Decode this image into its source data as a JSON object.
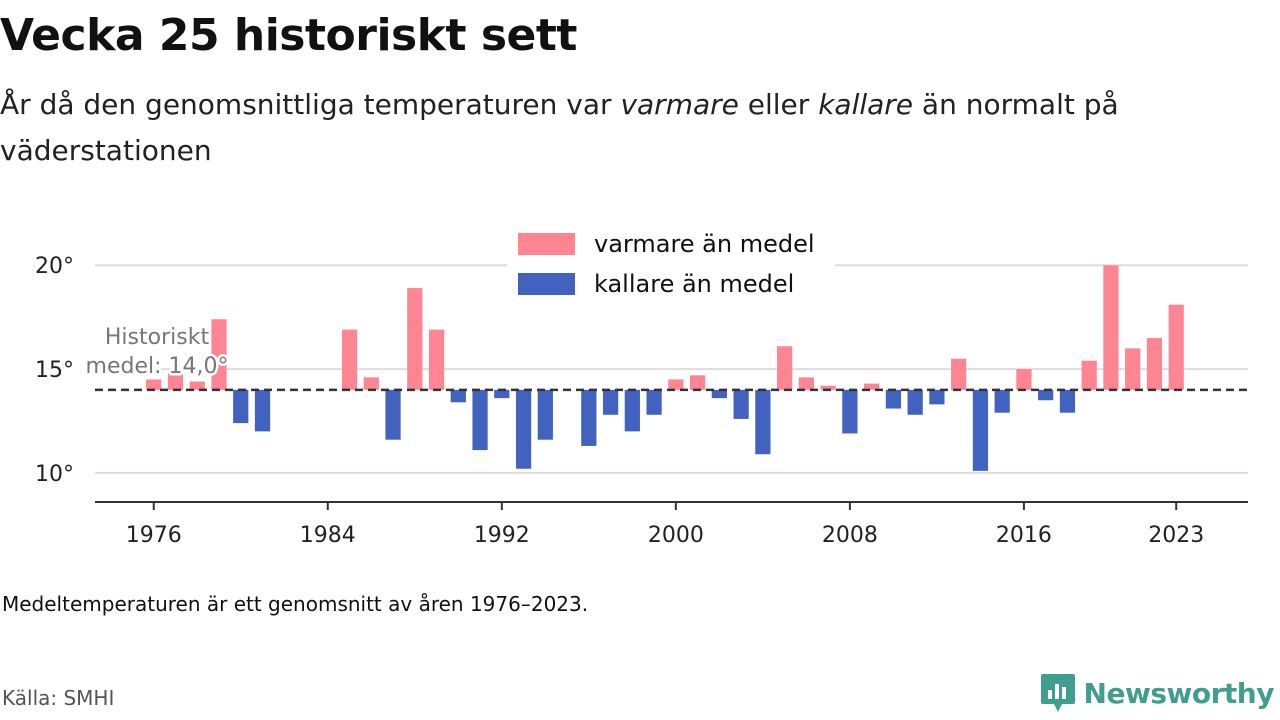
{
  "header": {
    "title": "Vecka 25 historiskt sett",
    "subtitle_parts": [
      "År då den genomsnittliga temperaturen var ",
      "varmare",
      " eller ",
      "kallare",
      " än normalt på väderstationen"
    ]
  },
  "footer": {
    "note": "Medeltemperaturen är ett genomsnitt av åren 1976–2023.",
    "source": "Källa: SMHI",
    "brand": "Newsworthy"
  },
  "colors": {
    "warm": "#ff8593",
    "cold": "#4262c0",
    "brand": "#3f9e8f",
    "grid": "#dddddd",
    "reference_line": "#333333"
  },
  "chart_data": {
    "type": "bar",
    "baseline": 14.0,
    "reference_label": [
      "Historiskt",
      "medel: 14,0°"
    ],
    "y_ticks": [
      10,
      15,
      20
    ],
    "y_tick_format": "{v}°",
    "ylim": [
      8.6,
      21.6
    ],
    "x_ticks": [
      1976,
      1984,
      1992,
      2000,
      2008,
      2016,
      2023
    ],
    "xlim": [
      1973.3,
      2026.3
    ],
    "grid": "horizontal",
    "legend": {
      "placement": "top-center",
      "entries": [
        {
          "label": "varmare än medel",
          "color_key": "warm"
        },
        {
          "label": "kallare än medel",
          "color_key": "cold"
        }
      ]
    },
    "x": [
      1976,
      1977,
      1978,
      1979,
      1980,
      1981,
      1985,
      1986,
      1987,
      1988,
      1989,
      1990,
      1991,
      1992,
      1993,
      1994,
      1996,
      1997,
      1998,
      1999,
      2000,
      2001,
      2002,
      2003,
      2004,
      2005,
      2006,
      2007,
      2008,
      2009,
      2010,
      2011,
      2012,
      2013,
      2014,
      2015,
      2016,
      2017,
      2018,
      2019,
      2020,
      2021,
      2022,
      2023
    ],
    "values": [
      14.5,
      14.8,
      14.4,
      17.4,
      12.4,
      12.0,
      16.9,
      14.6,
      11.6,
      18.9,
      16.9,
      13.4,
      11.1,
      13.6,
      10.2,
      11.6,
      11.3,
      12.8,
      12.0,
      12.8,
      14.5,
      14.7,
      13.6,
      12.6,
      10.9,
      16.1,
      14.6,
      14.2,
      11.9,
      14.3,
      13.1,
      12.8,
      13.3,
      15.5,
      10.1,
      12.9,
      15.0,
      13.5,
      12.9,
      15.4,
      20.0,
      16.0,
      16.5,
      18.1
    ]
  }
}
